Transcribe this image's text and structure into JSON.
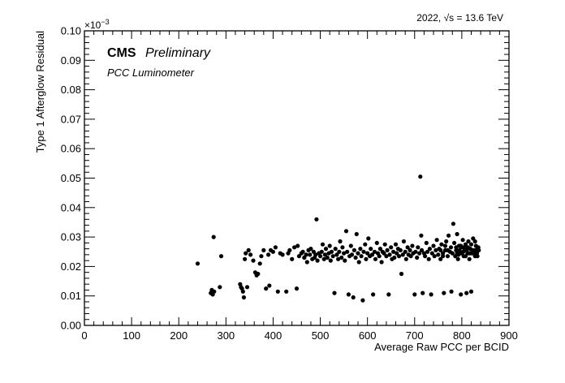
{
  "chart_data": {
    "type": "scatter",
    "header_right": "2022,   √s = 13.6 TeV",
    "header_right_parts": {
      "year": "2022,",
      "sqrt_symbol": "√",
      "s": "s",
      "energy": "= 13.6 TeV"
    },
    "cms_label": "CMS",
    "preliminary_label": "Preliminary",
    "detector_label": "PCC Luminometer",
    "xlabel": "Average Raw PCC per BCID",
    "ylabel": "Type 1 Afterglow Residual",
    "y_multiplier": "×10",
    "y_multiplier_exp": "−3",
    "xlim": [
      0,
      900
    ],
    "ylim": [
      0,
      0.1
    ],
    "x_ticks": [
      0,
      100,
      200,
      300,
      400,
      500,
      600,
      700,
      800,
      900
    ],
    "x_tick_labels": [
      "0",
      "100",
      "200",
      "300",
      "400",
      "500",
      "600",
      "700",
      "800",
      "900"
    ],
    "y_ticks": [
      0,
      0.01,
      0.02,
      0.03,
      0.04,
      0.05,
      0.06,
      0.07,
      0.08,
      0.09,
      0.1
    ],
    "y_tick_labels": [
      "0.00",
      "0.01",
      "0.02",
      "0.03",
      "0.04",
      "0.05",
      "0.06",
      "0.07",
      "0.08",
      "0.09",
      "0.10"
    ],
    "grid": false,
    "marker_color": "#000000",
    "points": [
      [
        240,
        0.021
      ],
      [
        268,
        0.011
      ],
      [
        270,
        0.012
      ],
      [
        272,
        0.0105
      ],
      [
        274,
        0.03
      ],
      [
        275,
        0.0115
      ],
      [
        287,
        0.013
      ],
      [
        290,
        0.0235
      ],
      [
        330,
        0.014
      ],
      [
        332,
        0.013
      ],
      [
        334,
        0.0125
      ],
      [
        336,
        0.0115
      ],
      [
        338,
        0.0095
      ],
      [
        340,
        0.0225
      ],
      [
        342,
        0.0245
      ],
      [
        345,
        0.013
      ],
      [
        348,
        0.0255
      ],
      [
        352,
        0.024
      ],
      [
        358,
        0.022
      ],
      [
        362,
        0.018
      ],
      [
        365,
        0.017
      ],
      [
        368,
        0.0175
      ],
      [
        372,
        0.021
      ],
      [
        375,
        0.0235
      ],
      [
        380,
        0.0255
      ],
      [
        385,
        0.0125
      ],
      [
        390,
        0.024
      ],
      [
        392,
        0.0135
      ],
      [
        395,
        0.0255
      ],
      [
        400,
        0.025
      ],
      [
        405,
        0.0265
      ],
      [
        410,
        0.0115
      ],
      [
        415,
        0.0245
      ],
      [
        420,
        0.024
      ],
      [
        428,
        0.0115
      ],
      [
        432,
        0.0245
      ],
      [
        435,
        0.0255
      ],
      [
        440,
        0.0225
      ],
      [
        445,
        0.0265
      ],
      [
        450,
        0.0125
      ],
      [
        452,
        0.027
      ],
      [
        455,
        0.0235
      ],
      [
        460,
        0.0245
      ],
      [
        463,
        0.025
      ],
      [
        466,
        0.023
      ],
      [
        470,
        0.024
      ],
      [
        472,
        0.0215
      ],
      [
        475,
        0.0255
      ],
      [
        478,
        0.024
      ],
      [
        480,
        0.026
      ],
      [
        483,
        0.0225
      ],
      [
        486,
        0.025
      ],
      [
        488,
        0.023
      ],
      [
        490,
        0.024
      ],
      [
        492,
        0.036
      ],
      [
        494,
        0.022
      ],
      [
        497,
        0.0245
      ],
      [
        500,
        0.0235
      ],
      [
        503,
        0.025
      ],
      [
        505,
        0.0275
      ],
      [
        508,
        0.0225
      ],
      [
        510,
        0.024
      ],
      [
        512,
        0.026
      ],
      [
        515,
        0.023
      ],
      [
        518,
        0.0245
      ],
      [
        520,
        0.027
      ],
      [
        522,
        0.022
      ],
      [
        524,
        0.025
      ],
      [
        527,
        0.0235
      ],
      [
        530,
        0.011
      ],
      [
        532,
        0.026
      ],
      [
        535,
        0.024
      ],
      [
        538,
        0.0225
      ],
      [
        540,
        0.025
      ],
      [
        542,
        0.0285
      ],
      [
        545,
        0.023
      ],
      [
        547,
        0.0265
      ],
      [
        550,
        0.0245
      ],
      [
        552,
        0.022
      ],
      [
        555,
        0.032
      ],
      [
        557,
        0.025
      ],
      [
        560,
        0.0105
      ],
      [
        562,
        0.0235
      ],
      [
        565,
        0.027
      ],
      [
        567,
        0.024
      ],
      [
        570,
        0.0095
      ],
      [
        572,
        0.0255
      ],
      [
        575,
        0.023
      ],
      [
        577,
        0.031
      ],
      [
        580,
        0.0245
      ],
      [
        582,
        0.0215
      ],
      [
        585,
        0.026
      ],
      [
        587,
        0.0235
      ],
      [
        590,
        0.0085
      ],
      [
        592,
        0.025
      ],
      [
        595,
        0.0275
      ],
      [
        597,
        0.0225
      ],
      [
        600,
        0.0245
      ],
      [
        602,
        0.0295
      ],
      [
        605,
        0.0235
      ],
      [
        607,
        0.026
      ],
      [
        610,
        0.024
      ],
      [
        612,
        0.0105
      ],
      [
        615,
        0.025
      ],
      [
        617,
        0.0225
      ],
      [
        620,
        0.028
      ],
      [
        622,
        0.0245
      ],
      [
        625,
        0.0235
      ],
      [
        627,
        0.026
      ],
      [
        630,
        0.0215
      ],
      [
        632,
        0.025
      ],
      [
        635,
        0.0245
      ],
      [
        637,
        0.0275
      ],
      [
        640,
        0.0235
      ],
      [
        642,
        0.0255
      ],
      [
        645,
        0.0105
      ],
      [
        647,
        0.024
      ],
      [
        650,
        0.0265
      ],
      [
        652,
        0.0225
      ],
      [
        655,
        0.025
      ],
      [
        657,
        0.023
      ],
      [
        660,
        0.0275
      ],
      [
        662,
        0.0245
      ],
      [
        665,
        0.026
      ],
      [
        667,
        0.0235
      ],
      [
        670,
        0.0255
      ],
      [
        672,
        0.0175
      ],
      [
        675,
        0.024
      ],
      [
        677,
        0.0285
      ],
      [
        680,
        0.025
      ],
      [
        682,
        0.0225
      ],
      [
        685,
        0.0265
      ],
      [
        687,
        0.024
      ],
      [
        690,
        0.0255
      ],
      [
        692,
        0.0235
      ],
      [
        695,
        0.027
      ],
      [
        697,
        0.0245
      ],
      [
        700,
        0.0105
      ],
      [
        702,
        0.025
      ],
      [
        705,
        0.023
      ],
      [
        707,
        0.0265
      ],
      [
        710,
        0.0245
      ],
      [
        712,
        0.0505
      ],
      [
        714,
        0.0305
      ],
      [
        715,
        0.0255
      ],
      [
        717,
        0.011
      ],
      [
        720,
        0.0245
      ],
      [
        722,
        0.0235
      ],
      [
        725,
        0.028
      ],
      [
        727,
        0.025
      ],
      [
        730,
        0.0225
      ],
      [
        732,
        0.026
      ],
      [
        735,
        0.0105
      ],
      [
        737,
        0.0245
      ],
      [
        740,
        0.027
      ],
      [
        742,
        0.0235
      ],
      [
        745,
        0.0255
      ],
      [
        747,
        0.029
      ],
      [
        750,
        0.024
      ],
      [
        752,
        0.026
      ],
      [
        755,
        0.0225
      ],
      [
        757,
        0.0275
      ],
      [
        760,
        0.0245
      ],
      [
        762,
        0.011
      ],
      [
        765,
        0.0255
      ],
      [
        767,
        0.0285
      ],
      [
        770,
        0.0235
      ],
      [
        772,
        0.0305
      ],
      [
        775,
        0.025
      ],
      [
        777,
        0.0265
      ],
      [
        778,
        0.0115
      ],
      [
        780,
        0.0245
      ],
      [
        782,
        0.0345
      ],
      [
        784,
        0.028
      ],
      [
        786,
        0.0235
      ],
      [
        788,
        0.0255
      ],
      [
        790,
        0.031
      ],
      [
        792,
        0.0225
      ],
      [
        794,
        0.027
      ],
      [
        796,
        0.0245
      ],
      [
        798,
        0.0105
      ],
      [
        800,
        0.0265
      ],
      [
        802,
        0.029
      ],
      [
        804,
        0.0235
      ],
      [
        806,
        0.0255
      ],
      [
        808,
        0.0275
      ],
      [
        810,
        0.011
      ],
      [
        812,
        0.0245
      ],
      [
        814,
        0.0285
      ],
      [
        816,
        0.0225
      ],
      [
        818,
        0.026
      ],
      [
        820,
        0.0115
      ],
      [
        822,
        0.0245
      ],
      [
        824,
        0.0295
      ],
      [
        826,
        0.0255
      ],
      [
        828,
        0.0235
      ],
      [
        830,
        0.027
      ],
      [
        832,
        0.0245
      ],
      [
        834,
        0.026
      ],
      [
        836,
        0.0255
      ],
      [
        790,
        0.0245
      ],
      [
        795,
        0.0255
      ],
      [
        800,
        0.0245
      ],
      [
        805,
        0.0265
      ],
      [
        810,
        0.0255
      ],
      [
        815,
        0.0245
      ],
      [
        820,
        0.0275
      ],
      [
        825,
        0.0245
      ],
      [
        830,
        0.0255
      ],
      [
        835,
        0.0265
      ],
      [
        798,
        0.027
      ],
      [
        803,
        0.025
      ],
      [
        808,
        0.0235
      ],
      [
        813,
        0.0265
      ],
      [
        818,
        0.0245
      ],
      [
        823,
        0.0255
      ],
      [
        828,
        0.0285
      ],
      [
        833,
        0.0235
      ],
      [
        788,
        0.0265
      ],
      [
        793,
        0.024
      ],
      [
        770,
        0.0255
      ],
      [
        765,
        0.027
      ],
      [
        760,
        0.0235
      ],
      [
        755,
        0.0255
      ]
    ]
  }
}
